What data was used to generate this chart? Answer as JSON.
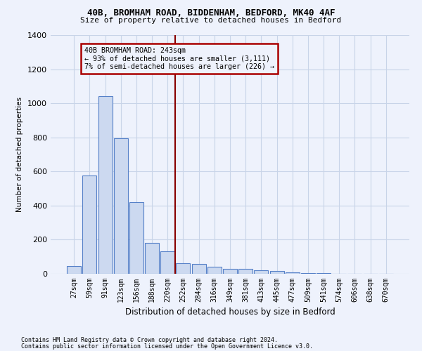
{
  "title_line1": "40B, BROMHAM ROAD, BIDDENHAM, BEDFORD, MK40 4AF",
  "title_line2": "Size of property relative to detached houses in Bedford",
  "xlabel": "Distribution of detached houses by size in Bedford",
  "ylabel": "Number of detached properties",
  "bar_color": "#ccd9f0",
  "bar_edge_color": "#5580c8",
  "grid_color": "#c8d4e8",
  "annotation_box_color": "#aa0000",
  "vline_color": "#880000",
  "categories": [
    "27sqm",
    "59sqm",
    "91sqm",
    "123sqm",
    "156sqm",
    "188sqm",
    "220sqm",
    "252sqm",
    "284sqm",
    "316sqm",
    "349sqm",
    "381sqm",
    "413sqm",
    "445sqm",
    "477sqm",
    "509sqm",
    "541sqm",
    "574sqm",
    "606sqm",
    "638sqm",
    "670sqm"
  ],
  "values": [
    47,
    575,
    1040,
    795,
    420,
    180,
    130,
    60,
    58,
    42,
    28,
    27,
    20,
    15,
    10,
    5,
    3,
    2,
    1,
    0,
    0
  ],
  "ylim": [
    0,
    1400
  ],
  "yticks": [
    0,
    200,
    400,
    600,
    800,
    1000,
    1200,
    1400
  ],
  "vline_x_index": 7.0,
  "annotation_text": "40B BROMHAM ROAD: 243sqm\n← 93% of detached houses are smaller (3,111)\n7% of semi-detached houses are larger (226) →",
  "footnote1": "Contains HM Land Registry data © Crown copyright and database right 2024.",
  "footnote2": "Contains public sector information licensed under the Open Government Licence v3.0.",
  "background_color": "#eef2fc"
}
